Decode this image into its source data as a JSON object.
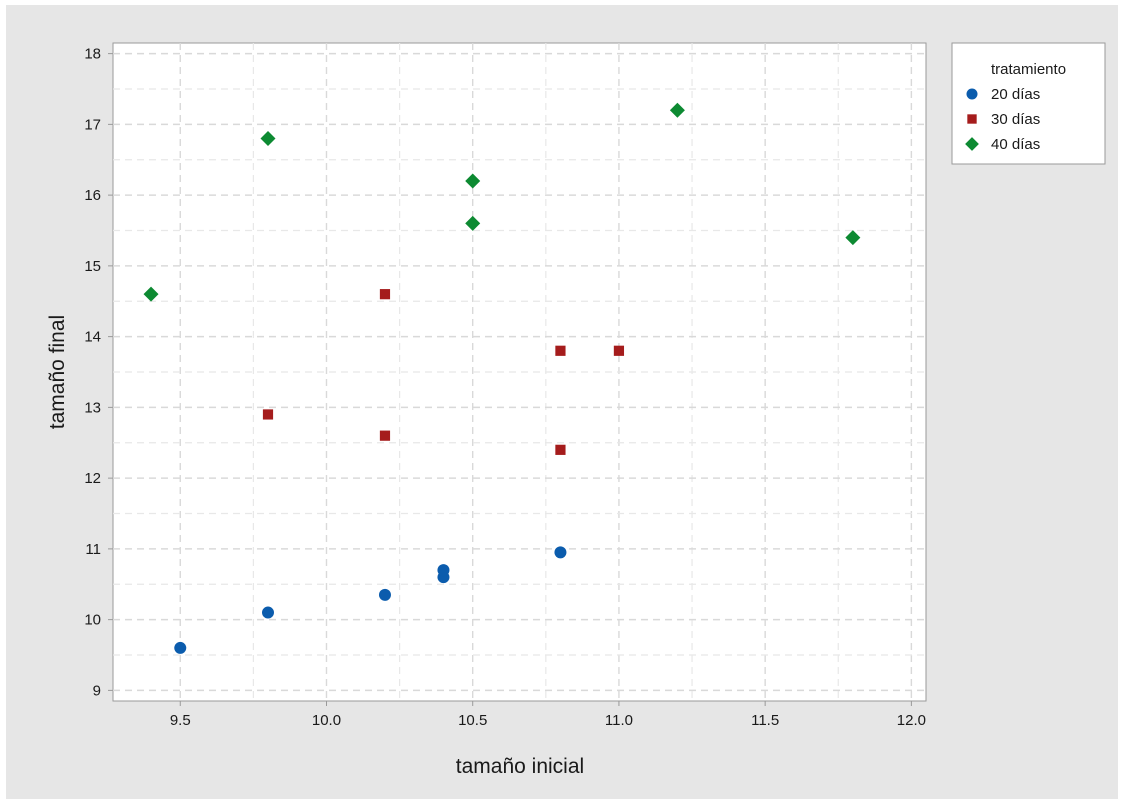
{
  "chart_data": {
    "type": "scatter",
    "xlabel": "tamaño inicial",
    "ylabel": "tamaño final",
    "xlim": [
      9.27,
      12.05
    ],
    "ylim": [
      8.85,
      18.15
    ],
    "x_ticks": [
      9.5,
      10.0,
      10.5,
      11.0,
      11.5,
      12.0
    ],
    "x_tick_labels": [
      "9.5",
      "10.0",
      "10.5",
      "11.0",
      "11.5",
      "12.0"
    ],
    "y_ticks": [
      9,
      10,
      11,
      12,
      13,
      14,
      15,
      16,
      17,
      18
    ],
    "y_tick_labels": [
      "9",
      "10",
      "11",
      "12",
      "13",
      "14",
      "15",
      "16",
      "17",
      "18"
    ],
    "grid": true,
    "legend": {
      "title": "tratamiento",
      "placement": "outside-right-top"
    },
    "series": [
      {
        "name": "20 días",
        "marker": "circle",
        "color": "#0b5cad",
        "points": [
          {
            "x": 9.5,
            "y": 9.6
          },
          {
            "x": 9.8,
            "y": 10.1
          },
          {
            "x": 10.2,
            "y": 10.35
          },
          {
            "x": 10.4,
            "y": 10.6
          },
          {
            "x": 10.4,
            "y": 10.7
          },
          {
            "x": 10.8,
            "y": 10.95
          }
        ]
      },
      {
        "name": "30 días",
        "marker": "square",
        "color": "#a51c1c",
        "points": [
          {
            "x": 9.8,
            "y": 12.9
          },
          {
            "x": 10.2,
            "y": 14.6
          },
          {
            "x": 10.2,
            "y": 12.6
          },
          {
            "x": 10.8,
            "y": 13.8
          },
          {
            "x": 10.8,
            "y": 12.4
          },
          {
            "x": 11.0,
            "y": 13.8
          }
        ]
      },
      {
        "name": "40 días",
        "marker": "diamond",
        "color": "#0d8a32",
        "points": [
          {
            "x": 9.4,
            "y": 14.6
          },
          {
            "x": 9.8,
            "y": 16.8
          },
          {
            "x": 10.5,
            "y": 16.2
          },
          {
            "x": 10.5,
            "y": 15.6
          },
          {
            "x": 11.2,
            "y": 17.2
          },
          {
            "x": 11.8,
            "y": 15.4
          }
        ]
      }
    ]
  },
  "colors": {
    "frame_background": "#e6e6e6",
    "plot_background": "#ffffff",
    "grid": "#d9d9d9",
    "axis": "#999999"
  }
}
